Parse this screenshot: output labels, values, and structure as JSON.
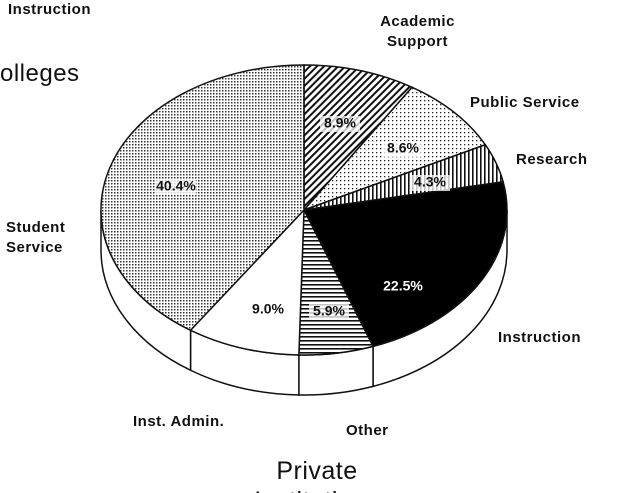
{
  "chart_data": {
    "type": "pie3d",
    "title": "Private Institutions",
    "annotations": [
      "Instruction",
      "olleges"
    ],
    "categories": [
      "Academic Support",
      "Public Service",
      "Research",
      "Instruction",
      "Other",
      "Inst. Admin.",
      "Student Service"
    ],
    "values": [
      8.9,
      8.6,
      4.3,
      22.5,
      5.9,
      9.0,
      40.4
    ],
    "value_labels": [
      "8.9%",
      "8.6%",
      "4.3%",
      "22.5%",
      "5.9%",
      "9.0%",
      "40.4%"
    ],
    "patterns": [
      "diagonal",
      "dots-light",
      "vertical",
      "solid-black",
      "horizontal",
      "white",
      "dots-dense"
    ]
  }
}
